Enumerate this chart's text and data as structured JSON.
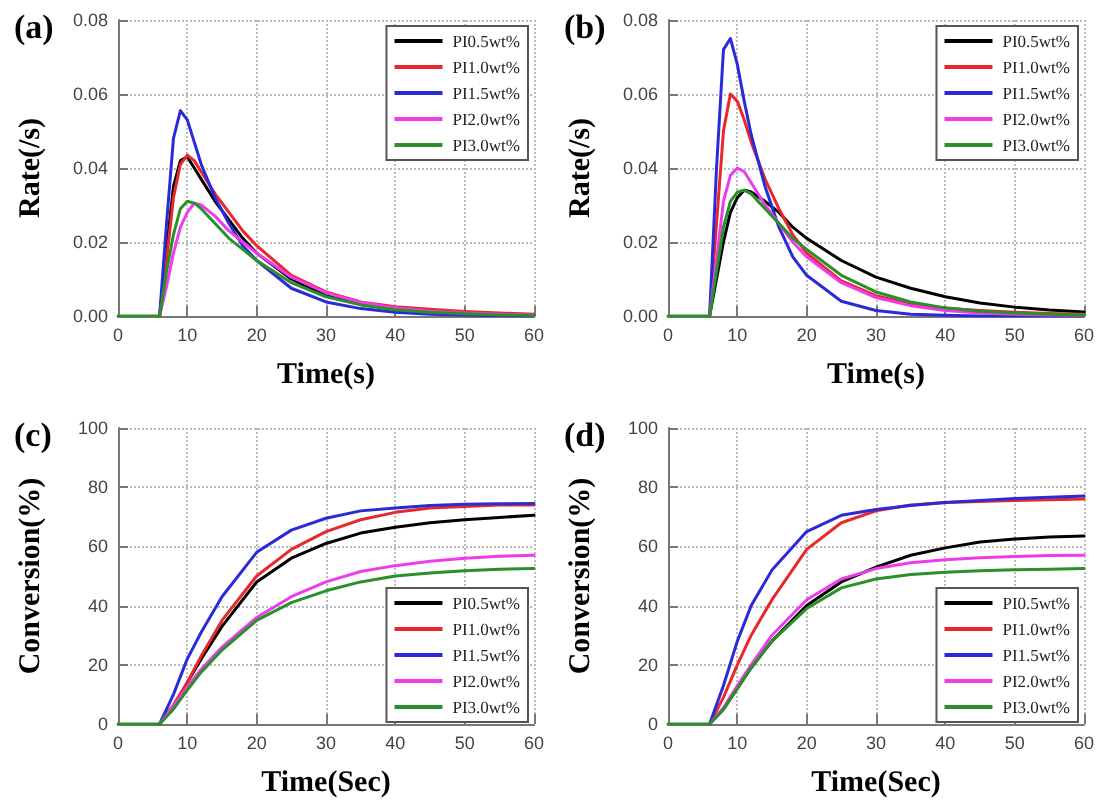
{
  "chart_data": [
    {
      "type": "line",
      "title": "(a)",
      "xlabel": "Time(s)",
      "ylabel": "Rate(/s)",
      "x": [
        0,
        5,
        6,
        7,
        8,
        9,
        10,
        11,
        12,
        14,
        16,
        18,
        20,
        25,
        30,
        35,
        40,
        45,
        50,
        55,
        60
      ],
      "xlim": [
        0,
        60
      ],
      "xticks": [
        0,
        10,
        20,
        30,
        40,
        50,
        60
      ],
      "ylim": [
        0,
        0.08
      ],
      "yticks": [
        {
          "value": 0,
          "label": "0.00"
        },
        {
          "value": 0.02,
          "label": "0.02"
        },
        {
          "value": 0.04,
          "label": "0.04"
        },
        {
          "value": 0.06,
          "label": "0.06"
        },
        {
          "value": 0.08,
          "label": "0.08"
        }
      ],
      "grid": true,
      "legend": "top right",
      "marker": "none",
      "line_style": "solid",
      "series": [
        {
          "name": "PI0.5wt%",
          "color": "#000000",
          "values": [
            null,
            null,
            0,
            0.018,
            0.035,
            0.042,
            0.043,
            0.04,
            0.037,
            0.031,
            0.026,
            0.021,
            0.017,
            0.01,
            0.0055,
            0.0032,
            0.0018,
            0.001,
            0.0006,
            0.0003,
            0.0002
          ]
        },
        {
          "name": "PI1.0wt%",
          "color": "#e8282b",
          "values": [
            null,
            null,
            0,
            0.015,
            0.032,
            0.041,
            0.0435,
            0.042,
            0.039,
            0.033,
            0.028,
            0.023,
            0.019,
            0.011,
            0.0065,
            0.0038,
            0.0025,
            0.0018,
            0.0012,
            0.0008,
            0.0005
          ]
        },
        {
          "name": "PI1.5wt%",
          "color": "#2a2ad8",
          "values": [
            null,
            null,
            0,
            0.025,
            0.048,
            0.0555,
            0.053,
            0.047,
            0.041,
            0.032,
            0.025,
            0.019,
            0.015,
            0.0075,
            0.0038,
            0.002,
            0.001,
            0.0005,
            0.0003,
            0.0001,
            0
          ]
        },
        {
          "name": "PI2.0wt%",
          "color": "#ee3ced",
          "values": [
            null,
            null,
            0,
            0.008,
            0.017,
            0.024,
            0.028,
            0.0305,
            0.03,
            0.027,
            0.023,
            0.02,
            0.017,
            0.0105,
            0.0063,
            0.0037,
            0.0022,
            0.0013,
            0.0008,
            0.0005,
            0.0003
          ]
        },
        {
          "name": "PI3.0wt%",
          "color": "#2b8f2b",
          "values": [
            0,
            0,
            0,
            0.012,
            0.022,
            0.029,
            0.031,
            0.0305,
            0.029,
            0.025,
            0.021,
            0.018,
            0.015,
            0.009,
            0.0052,
            0.003,
            0.0017,
            0.001,
            0.0006,
            0.0003,
            0.0002
          ]
        }
      ]
    },
    {
      "type": "line",
      "title": "(b)",
      "xlabel": "Time(s)",
      "ylabel": "Rate(/s)",
      "x": [
        0,
        5,
        6,
        7,
        8,
        9,
        10,
        11,
        12,
        14,
        16,
        18,
        20,
        25,
        30,
        35,
        40,
        45,
        50,
        55,
        60
      ],
      "xlim": [
        0,
        60
      ],
      "xticks": [
        0,
        10,
        20,
        30,
        40,
        50,
        60
      ],
      "ylim": [
        0,
        0.08
      ],
      "yticks": [
        {
          "value": 0,
          "label": "0.00"
        },
        {
          "value": 0.02,
          "label": "0.02"
        },
        {
          "value": 0.04,
          "label": "0.04"
        },
        {
          "value": 0.06,
          "label": "0.06"
        },
        {
          "value": 0.08,
          "label": "0.08"
        }
      ],
      "grid": true,
      "legend": "top right",
      "marker": "none",
      "line_style": "solid",
      "series": [
        {
          "name": "PI0.5wt%",
          "color": "#000000",
          "values": [
            null,
            null,
            0,
            0.01,
            0.02,
            0.028,
            0.032,
            0.034,
            0.0335,
            0.031,
            0.028,
            0.024,
            0.021,
            0.015,
            0.0105,
            0.0075,
            0.0052,
            0.0035,
            0.0024,
            0.0016,
            0.0011
          ]
        },
        {
          "name": "PI1.0wt%",
          "color": "#e8282b",
          "values": [
            null,
            null,
            0,
            0.025,
            0.05,
            0.06,
            0.058,
            0.053,
            0.047,
            0.037,
            0.029,
            0.022,
            0.017,
            0.0095,
            0.0055,
            0.0032,
            0.0021,
            0.0015,
            0.001,
            0.0007,
            0.0005
          ]
        },
        {
          "name": "PI1.5wt%",
          "color": "#2a2ad8",
          "values": [
            null,
            null,
            0,
            0.04,
            0.072,
            0.075,
            0.068,
            0.058,
            0.049,
            0.035,
            0.024,
            0.016,
            0.011,
            0.004,
            0.0015,
            0.0005,
            0.0002,
            0,
            0,
            0,
            0
          ]
        },
        {
          "name": "PI2.0wt%",
          "color": "#ee3ced",
          "values": [
            null,
            null,
            0,
            0.015,
            0.031,
            0.038,
            0.04,
            0.039,
            0.036,
            0.03,
            0.025,
            0.02,
            0.016,
            0.009,
            0.005,
            0.0028,
            0.0015,
            0.0008,
            0.0005,
            0.0003,
            0.0002
          ]
        },
        {
          "name": "PI3.0wt%",
          "color": "#2b8f2b",
          "values": [
            0,
            0,
            0,
            0.012,
            0.024,
            0.031,
            0.0335,
            0.034,
            0.033,
            0.029,
            0.025,
            0.021,
            0.018,
            0.011,
            0.0065,
            0.0038,
            0.0022,
            0.0013,
            0.0008,
            0.0005,
            0.0003
          ]
        }
      ]
    },
    {
      "type": "line",
      "title": "(c)",
      "xlabel": "Time(Sec)",
      "ylabel": "Conversion(%)",
      "x": [
        0,
        5,
        6,
        8,
        10,
        12,
        15,
        20,
        25,
        30,
        35,
        40,
        45,
        50,
        55,
        60
      ],
      "xlim": [
        0,
        60
      ],
      "xticks": [
        0,
        10,
        20,
        30,
        40,
        50,
        60
      ],
      "ylim": [
        0,
        100
      ],
      "yticks": [
        0,
        20,
        40,
        60,
        80,
        100
      ],
      "grid": true,
      "legend": "bottom right",
      "marker": "none",
      "line_style": "solid",
      "series": [
        {
          "name": "PI0.5wt%",
          "color": "#000000",
          "values": [
            null,
            null,
            0,
            6,
            14,
            22,
            33,
            48,
            56,
            61,
            64.5,
            66.5,
            68,
            69,
            69.8,
            70.5
          ]
        },
        {
          "name": "PI1.0wt%",
          "color": "#e8282b",
          "values": [
            null,
            null,
            0,
            6.5,
            14,
            23,
            35,
            50,
            59,
            65,
            69,
            71.5,
            73,
            73.5,
            74,
            74
          ]
        },
        {
          "name": "PI1.5wt%",
          "color": "#2a2ad8",
          "values": [
            null,
            null,
            0,
            10,
            22,
            31,
            43,
            58,
            65.5,
            69.5,
            72,
            73,
            73.8,
            74.2,
            74.4,
            74.5
          ]
        },
        {
          "name": "PI2.0wt%",
          "color": "#ee3ced",
          "values": [
            null,
            null,
            0,
            6,
            12.5,
            18.5,
            26,
            36,
            43,
            48,
            51.5,
            53.5,
            55,
            56,
            56.7,
            57
          ]
        },
        {
          "name": "PI3.0wt%",
          "color": "#2b8f2b",
          "values": [
            0,
            0,
            0,
            5,
            11.5,
            17.5,
            25,
            35,
            41,
            45,
            48,
            50,
            51,
            51.8,
            52.3,
            52.5
          ]
        }
      ]
    },
    {
      "type": "line",
      "title": "(d)",
      "xlabel": "Time(Sec)",
      "ylabel": "Conversion(%)",
      "x": [
        0,
        5,
        6,
        8,
        10,
        12,
        15,
        20,
        25,
        30,
        35,
        40,
        45,
        50,
        55,
        60
      ],
      "xlim": [
        0,
        60
      ],
      "xticks": [
        0,
        10,
        20,
        30,
        40,
        50,
        60
      ],
      "ylim": [
        0,
        100
      ],
      "yticks": [
        0,
        20,
        40,
        60,
        80,
        100
      ],
      "grid": true,
      "legend": "bottom right",
      "marker": "none",
      "line_style": "solid",
      "series": [
        {
          "name": "PI0.5wt%",
          "color": "#000000",
          "values": [
            null,
            null,
            0,
            5,
            12,
            19,
            28,
            40,
            48,
            53,
            57,
            59.5,
            61.5,
            62.5,
            63.2,
            63.5
          ]
        },
        {
          "name": "PI1.0wt%",
          "color": "#e8282b",
          "values": [
            null,
            null,
            0,
            9,
            20,
            30,
            42,
            59,
            68,
            72,
            74,
            74.8,
            75.2,
            75.5,
            75.8,
            76
          ]
        },
        {
          "name": "PI1.5wt%",
          "color": "#2a2ad8",
          "values": [
            null,
            null,
            0,
            13,
            28,
            40,
            52,
            65,
            70.5,
            72.5,
            73.8,
            74.8,
            75.5,
            76.2,
            76.6,
            77
          ]
        },
        {
          "name": "PI2.0wt%",
          "color": "#ee3ced",
          "values": [
            null,
            null,
            0,
            5.5,
            13,
            20,
            30,
            42,
            49,
            52.5,
            54.5,
            55.5,
            56.2,
            56.6,
            56.9,
            57
          ]
        },
        {
          "name": "PI3.0wt%",
          "color": "#2b8f2b",
          "values": [
            0,
            0,
            0,
            5,
            12,
            19,
            28,
            39,
            46,
            49,
            50.5,
            51.3,
            51.8,
            52.1,
            52.3,
            52.5
          ]
        }
      ]
    }
  ]
}
